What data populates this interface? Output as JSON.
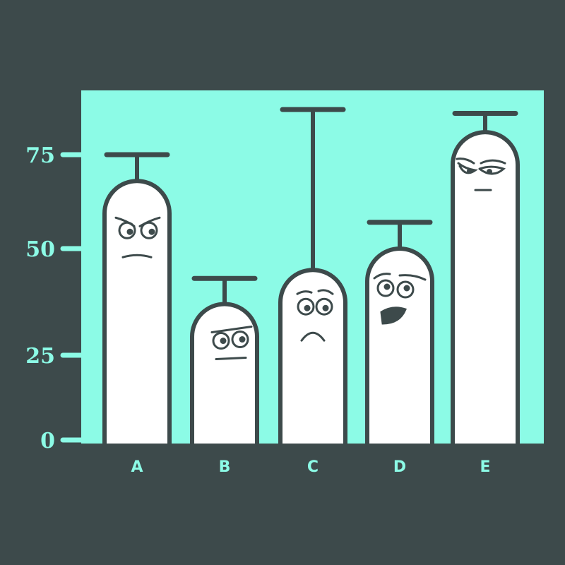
{
  "chart_data": {
    "type": "bar",
    "title": "",
    "xlabel": "",
    "ylabel": "",
    "categories": [
      "A",
      "B",
      "C",
      "D",
      "E"
    ],
    "values": [
      68,
      37,
      45,
      50,
      81
    ],
    "error_upper": [
      75,
      43,
      87,
      57,
      86
    ],
    "yticks": [
      0,
      25,
      50,
      75
    ],
    "ylim": [
      0,
      90
    ],
    "grid": false,
    "faces": [
      "angry",
      "annoyed",
      "sad",
      "shocked",
      "smug"
    ],
    "colors": {
      "background": "#3d4a4b",
      "plot_area": "#8cfbe6",
      "bar_fill": "#ffffff",
      "outline": "#3d4a4b",
      "text": "#8cfbe6"
    }
  }
}
